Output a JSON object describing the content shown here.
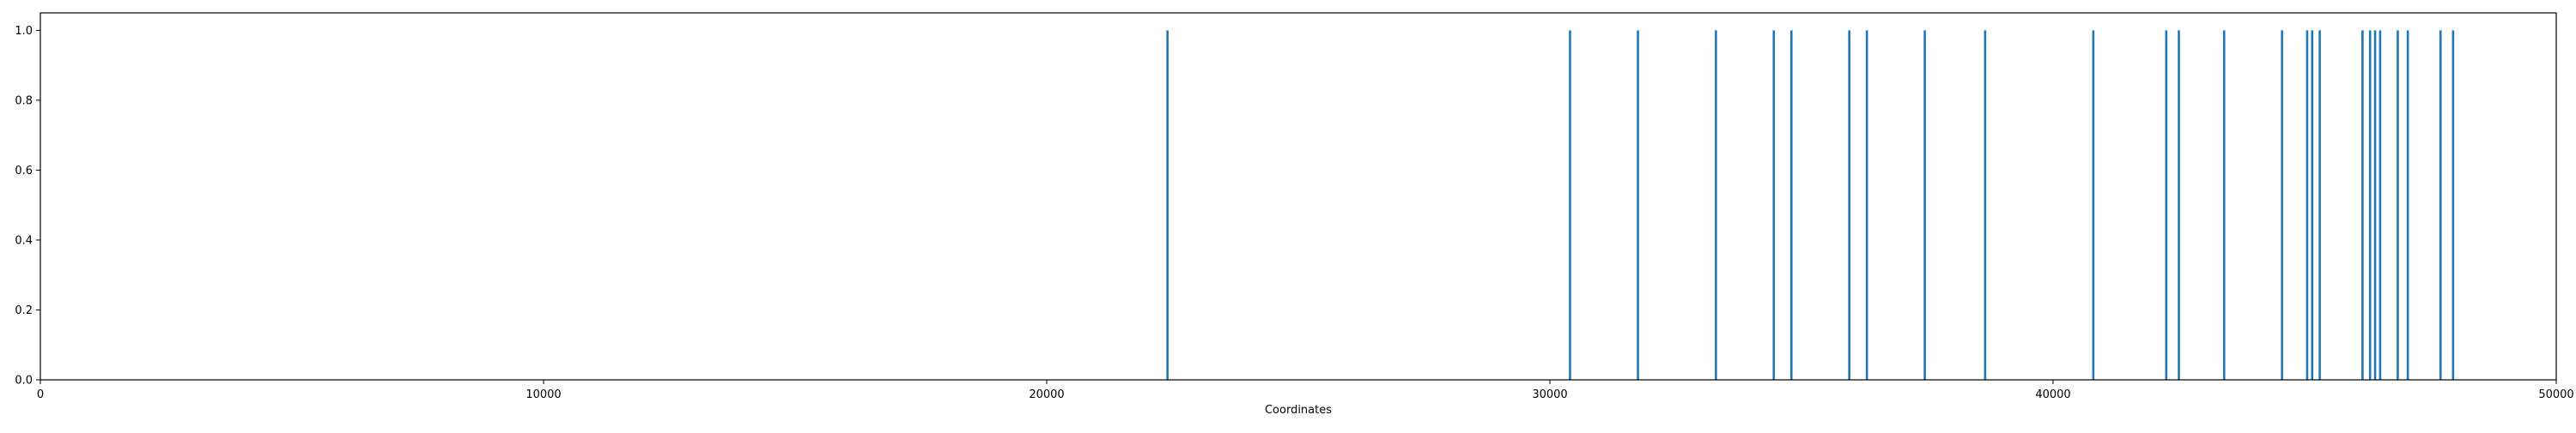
{
  "chart_data": {
    "type": "bar",
    "title": "",
    "xlabel": "Coordinates",
    "ylabel": "",
    "xlim": [
      0,
      50000
    ],
    "ylim": [
      0,
      1.05
    ],
    "x_ticks": [
      "0",
      "10000",
      "20000",
      "30000",
      "40000",
      "50000"
    ],
    "y_ticks": [
      "0.0",
      "0.2",
      "0.4",
      "0.6",
      "0.8",
      "1.0"
    ],
    "grid": false,
    "legend": "none",
    "series": [
      {
        "color": "#1f77b4",
        "x": [
          22400,
          30400,
          31750,
          33300,
          34450,
          34800,
          35950,
          36300,
          37450,
          38650,
          40800,
          42250,
          42500,
          43400,
          44550,
          45050,
          45150,
          45300,
          46150,
          46300,
          46400,
          46500,
          46850,
          47050,
          47700,
          47950
        ],
        "values": [
          1,
          1,
          1,
          1,
          1,
          1,
          1,
          1,
          1,
          1,
          1,
          1,
          1,
          1,
          1,
          1,
          1,
          1,
          1,
          1,
          1,
          1,
          1,
          1,
          1,
          1
        ]
      }
    ]
  }
}
